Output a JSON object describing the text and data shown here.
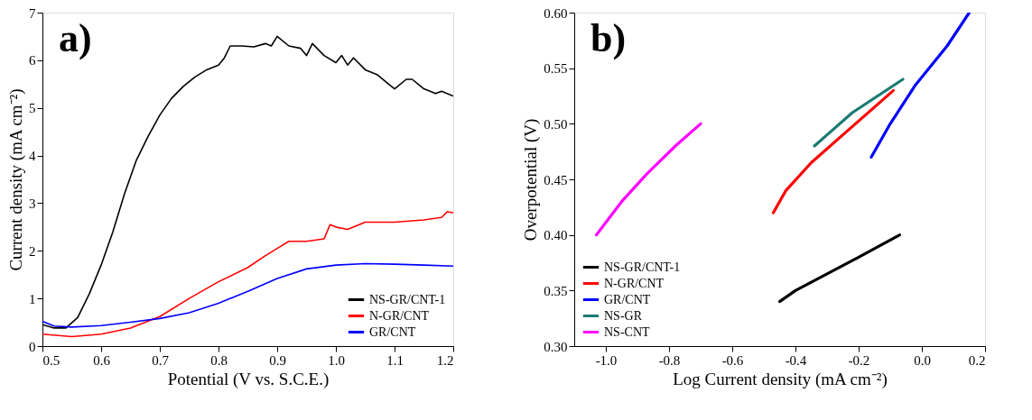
{
  "chart_data": [
    {
      "type": "line",
      "xlabel": "Potential (V vs. S.C.E.)",
      "ylabel": "Current density (mA cm⁻²)",
      "annotations": [
        "a)"
      ],
      "xlim": [
        0.5,
        1.2
      ],
      "ylim": [
        0,
        7
      ],
      "xticks": [
        0.5,
        0.6,
        0.7,
        0.8,
        0.9,
        {
          "value": 1.0,
          "label": "1.0"
        },
        1.1,
        1.2
      ],
      "yticks": [
        0,
        1,
        2,
        3,
        4,
        5,
        6,
        7
      ],
      "grid": false,
      "legend": "bottom right",
      "marker": "none",
      "line_style": "solid",
      "series": [
        {
          "name": "NS-GR/CNT-1",
          "color": "#000000",
          "x": [
            0.5,
            0.52,
            0.54,
            0.56,
            0.58,
            0.6,
            0.62,
            0.64,
            0.66,
            0.68,
            0.7,
            0.72,
            0.74,
            0.76,
            0.78,
            0.8,
            0.81,
            0.82,
            0.84,
            0.86,
            0.88,
            0.89,
            0.9,
            0.92,
            0.94,
            0.95,
            0.96,
            0.98,
            1.0,
            1.01,
            1.02,
            1.03,
            1.05,
            1.07,
            1.09,
            1.1,
            1.12,
            1.13,
            1.15,
            1.17,
            1.18,
            1.2
          ],
          "values": [
            0.45,
            0.38,
            0.38,
            0.6,
            1.1,
            1.7,
            2.4,
            3.2,
            3.9,
            4.4,
            4.85,
            5.2,
            5.45,
            5.65,
            5.8,
            5.9,
            6.05,
            6.3,
            6.3,
            6.28,
            6.35,
            6.3,
            6.5,
            6.3,
            6.25,
            6.1,
            6.35,
            6.1,
            5.95,
            6.1,
            5.9,
            6.05,
            5.8,
            5.7,
            5.5,
            5.4,
            5.6,
            5.6,
            5.4,
            5.3,
            5.35,
            5.25
          ]
        },
        {
          "name": "N-GR/CNT",
          "color": "#ff0000",
          "x": [
            0.5,
            0.55,
            0.6,
            0.65,
            0.7,
            0.75,
            0.8,
            0.85,
            0.88,
            0.9,
            0.92,
            0.95,
            0.98,
            0.99,
            1.0,
            1.02,
            1.05,
            1.1,
            1.15,
            1.18,
            1.19,
            1.2
          ],
          "values": [
            0.25,
            0.2,
            0.25,
            0.38,
            0.62,
            1.0,
            1.35,
            1.65,
            1.9,
            2.05,
            2.2,
            2.2,
            2.25,
            2.55,
            2.5,
            2.45,
            2.6,
            2.6,
            2.65,
            2.7,
            2.82,
            2.8
          ]
        },
        {
          "name": "GR/CNT",
          "color": "#0000ff",
          "x": [
            0.5,
            0.52,
            0.55,
            0.6,
            0.65,
            0.7,
            0.75,
            0.8,
            0.85,
            0.9,
            0.95,
            1.0,
            1.05,
            1.1,
            1.15,
            1.2
          ],
          "values": [
            0.52,
            0.42,
            0.4,
            0.43,
            0.5,
            0.58,
            0.7,
            0.9,
            1.15,
            1.42,
            1.62,
            1.7,
            1.73,
            1.72,
            1.7,
            1.68
          ]
        }
      ]
    },
    {
      "type": "line",
      "xlabel": "Log Current density (mA cm⁻²)",
      "ylabel": "Overpotential (V)",
      "annotations": [
        "b)"
      ],
      "xlim": [
        -1.1,
        0.2
      ],
      "ylim": [
        0.3,
        0.6
      ],
      "xticks": [
        {
          "value": -1.0,
          "label": "-1.0"
        },
        {
          "value": -0.8,
          "label": "-0.8"
        },
        {
          "value": -0.6,
          "label": "-0.6"
        },
        {
          "value": -0.4,
          "label": "-0.4"
        },
        {
          "value": -0.2,
          "label": "-0.2"
        },
        {
          "value": 0.0,
          "label": "0.0"
        },
        {
          "value": 0.2,
          "label": "0.2"
        }
      ],
      "yticks": [
        {
          "value": 0.3,
          "label": "0.30"
        },
        {
          "value": 0.35,
          "label": "0.35"
        },
        {
          "value": 0.4,
          "label": "0.40"
        },
        {
          "value": 0.45,
          "label": "0.45"
        },
        {
          "value": 0.5,
          "label": "0.50"
        },
        {
          "value": 0.55,
          "label": "0.55"
        },
        {
          "value": 0.6,
          "label": "0.60"
        }
      ],
      "grid": false,
      "legend": "bottom left",
      "marker": "none",
      "line_style": "solid",
      "series": [
        {
          "name": "NS-GR/CNT-1",
          "color": "#000000",
          "x": [
            -0.45,
            -0.4,
            -0.3,
            -0.2,
            -0.07
          ],
          "values": [
            0.34,
            0.35,
            0.365,
            0.38,
            0.4
          ]
        },
        {
          "name": "N-GR/CNT",
          "color": "#ff0000",
          "x": [
            -0.47,
            -0.43,
            -0.35,
            -0.25,
            -0.15,
            -0.09
          ],
          "values": [
            0.42,
            0.44,
            0.465,
            0.49,
            0.515,
            0.53
          ]
        },
        {
          "name": "GR/CNT",
          "color": "#0000ff",
          "x": [
            -0.16,
            -0.1,
            -0.02,
            0.08,
            0.15
          ],
          "values": [
            0.47,
            0.5,
            0.535,
            0.57,
            0.6
          ]
        },
        {
          "name": "NS-GR",
          "color": "#1a7a73",
          "x": [
            -0.34,
            -0.3,
            -0.22,
            -0.14,
            -0.06
          ],
          "values": [
            0.48,
            0.49,
            0.51,
            0.525,
            0.54
          ]
        },
        {
          "name": "NS-CNT",
          "color": "#ff00ff",
          "x": [
            -1.03,
            -0.95,
            -0.87,
            -0.78,
            -0.7
          ],
          "values": [
            0.4,
            0.43,
            0.455,
            0.48,
            0.5
          ]
        }
      ]
    }
  ]
}
